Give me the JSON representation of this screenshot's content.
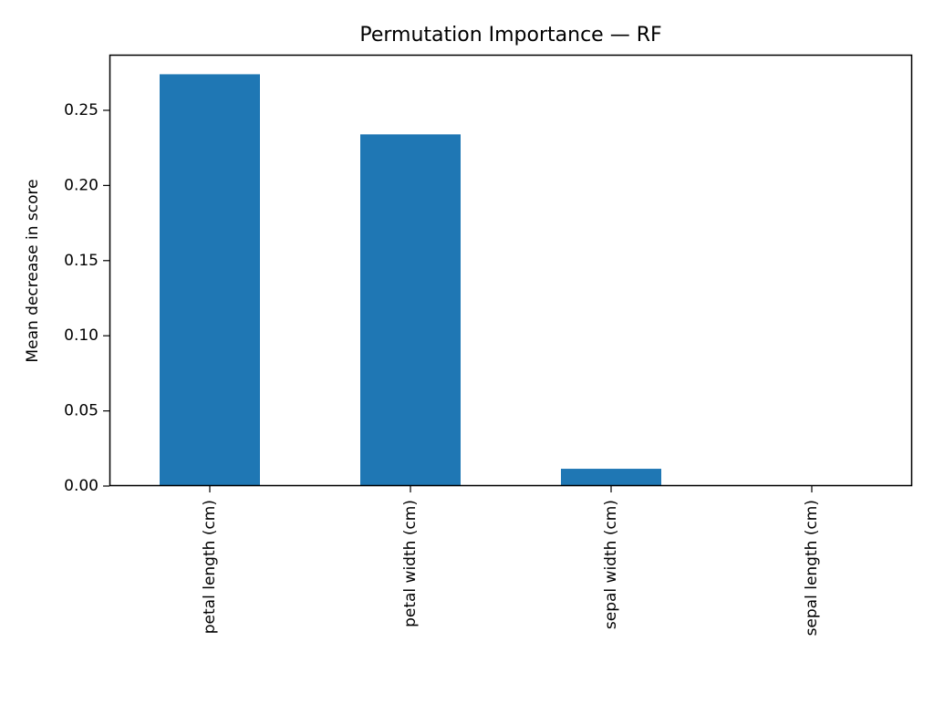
{
  "chart_data": {
    "type": "bar",
    "title": "Permutation Importance — RF",
    "xlabel": "",
    "ylabel": "Mean decrease in score",
    "categories": [
      "petal length (cm)",
      "petal width (cm)",
      "sepal width (cm)",
      "sepal length (cm)"
    ],
    "values": [
      0.274,
      0.234,
      0.0115,
      0.0
    ],
    "ylim": [
      0,
      0.287
    ],
    "yticks": [
      0.0,
      0.05,
      0.1,
      0.15,
      0.2,
      0.25
    ],
    "ytick_labels": [
      "0.00",
      "0.05",
      "0.10",
      "0.15",
      "0.20",
      "0.25"
    ],
    "bar_color": "#1f77b4",
    "grid": false,
    "legend": "none"
  }
}
